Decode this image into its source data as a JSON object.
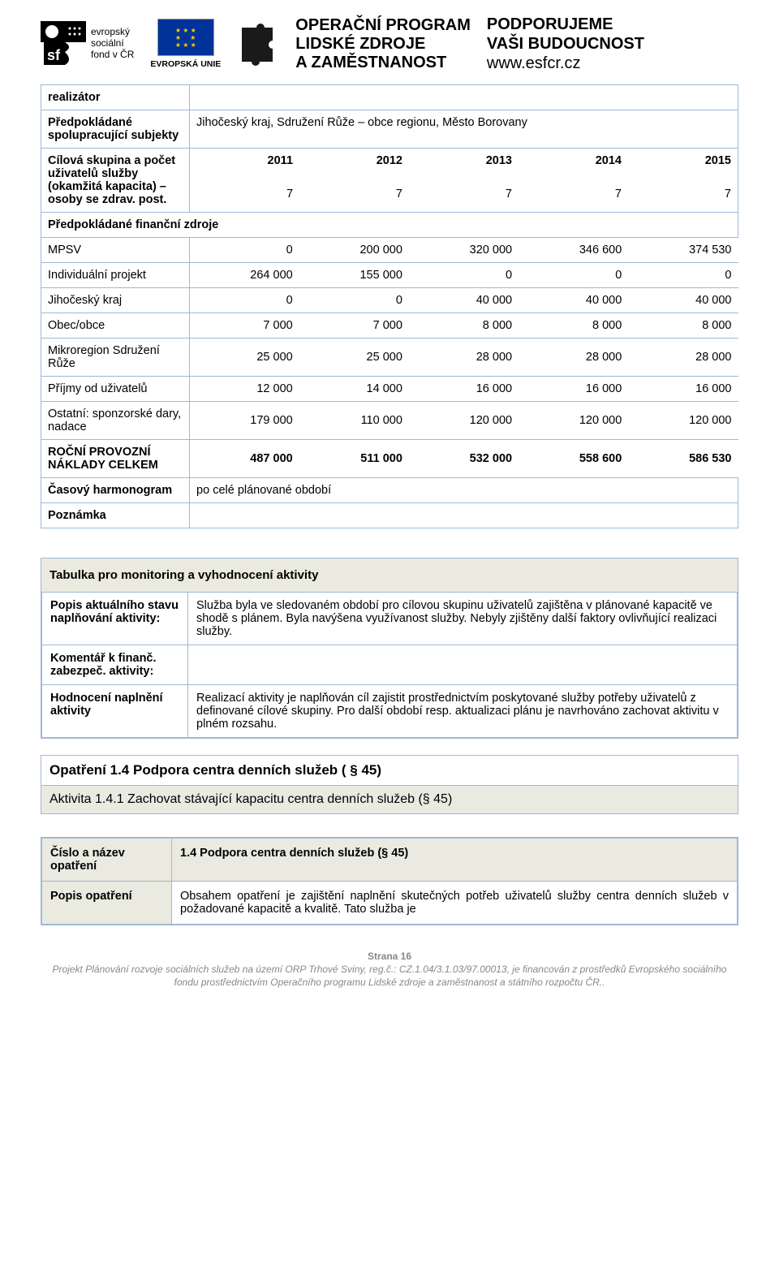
{
  "header": {
    "esf_lines": "evropský\nsociální\nfond v ČR",
    "eu_label": "EVROPSKÁ UNIE",
    "op_line1": "OPERAČNÍ PROGRAM",
    "op_line2": "LIDSKÉ ZDROJE",
    "op_line3": "A ZAMĚSTNANOST",
    "support_line1": "PODPORUJEME",
    "support_line2": "VAŠI BUDOUCNOST",
    "support_line3": "www.esfcr.cz"
  },
  "main_table": {
    "rows": {
      "realizator": "realizátor",
      "subjekty_label": "Předpokládané spolupracující subjekty",
      "subjekty_value": "Jihočeský kraj, Sdružení Růže – obce regionu, Město Borovany",
      "cilova_label": "Cílová skupina a počet uživatelů služby (okamžitá kapacita) – osoby se zdrav. post.",
      "years": [
        "2011",
        "2012",
        "2013",
        "2014",
        "2015"
      ],
      "counts": [
        "7",
        "7",
        "7",
        "7",
        "7"
      ],
      "finance_header": "Předpokládané finanční zdroje",
      "finance_rows": [
        {
          "label": "MPSV",
          "vals": [
            "0",
            "200 000",
            "320 000",
            "346 600",
            "374 530"
          ],
          "bold": false
        },
        {
          "label": "Individuální projekt",
          "vals": [
            "264 000",
            "155 000",
            "0",
            "0",
            "0"
          ],
          "bold": false
        },
        {
          "label": "Jihočeský kraj",
          "vals": [
            "0",
            "0",
            "40 000",
            "40 000",
            "40 000"
          ],
          "bold": false
        },
        {
          "label": "Obec/obce",
          "vals": [
            "7 000",
            "7 000",
            "8 000",
            "8 000",
            "8 000"
          ],
          "bold": false
        },
        {
          "label": "Mikroregion Sdružení Růže",
          "vals": [
            "25 000",
            "25 000",
            "28 000",
            "28 000",
            "28 000"
          ],
          "bold": false
        },
        {
          "label": "Příjmy od uživatelů",
          "vals": [
            "12 000",
            "14 000",
            "16 000",
            "16 000",
            "16 000"
          ],
          "bold": false
        },
        {
          "label": "Ostatní: sponzorské dary, nadace",
          "vals": [
            "179 000",
            "110 000",
            "120 000",
            "120 000",
            "120 000"
          ],
          "bold": false
        },
        {
          "label": "ROČNÍ PROVOZNÍ NÁKLADY CELKEM",
          "vals": [
            "487 000",
            "511 000",
            "532 000",
            "558 600",
            "586 530"
          ],
          "bold": true
        }
      ],
      "casovy_label": "Časový harmonogram",
      "casovy_value": "po celé plánované období",
      "poznamka_label": "Poznámka"
    }
  },
  "monitoring": {
    "header": "Tabulka pro monitoring a vyhodnocení aktivity",
    "rows": [
      {
        "label": "Popis aktuálního stavu naplňování aktivity:",
        "value": "Služba byla ve sledovaném období pro cílovou skupinu uživatelů zajištěna v plánované kapacitě ve shodě s plánem. Byla navýšena využívanost služby. Nebyly zjištěny další faktory ovlivňující realizaci služby."
      },
      {
        "label": "Komentář k finanč. zabezpeč. aktivity:",
        "value": ""
      },
      {
        "label": "Hodnocení naplnění aktivity",
        "value": "Realizací aktivity je naplňován cíl zajistit prostřednictvím poskytované služby potřeby uživatelů z definované cílové skupiny. Pro další období resp. aktualizaci plánu je navrhováno zachovat aktivitu v plném rozsahu."
      }
    ]
  },
  "opatreni": {
    "line1": "Opatření 1.4  Podpora centra denních služeb ( § 45)",
    "line2": "Aktivita 1.4.1  Zachovat stávající kapacitu centra denních služeb (§ 45)"
  },
  "cislo": {
    "r1_label": "Číslo a název opatření",
    "r1_value": "1.4 Podpora centra denních služeb (§ 45)",
    "r2_label": "Popis opatření",
    "r2_value": "Obsahem opatření je zajištění naplnění skutečných potřeb uživatelů služby centra denních služeb v požadované kapacitě a kvalitě. Tato služba je"
  },
  "footer": {
    "strana": "Strana 16",
    "line": "Projekt Plánování rozvoje sociálních služeb na území ORP Trhové Sviny, reg.č.: CZ.1.04/3.1.03/97.00013, je financován z prostředků Evropského sociálního fondu prostřednictvím Operačního programu Lidské zdroje a zaměstnanost a státního rozpočtu ČR.."
  }
}
